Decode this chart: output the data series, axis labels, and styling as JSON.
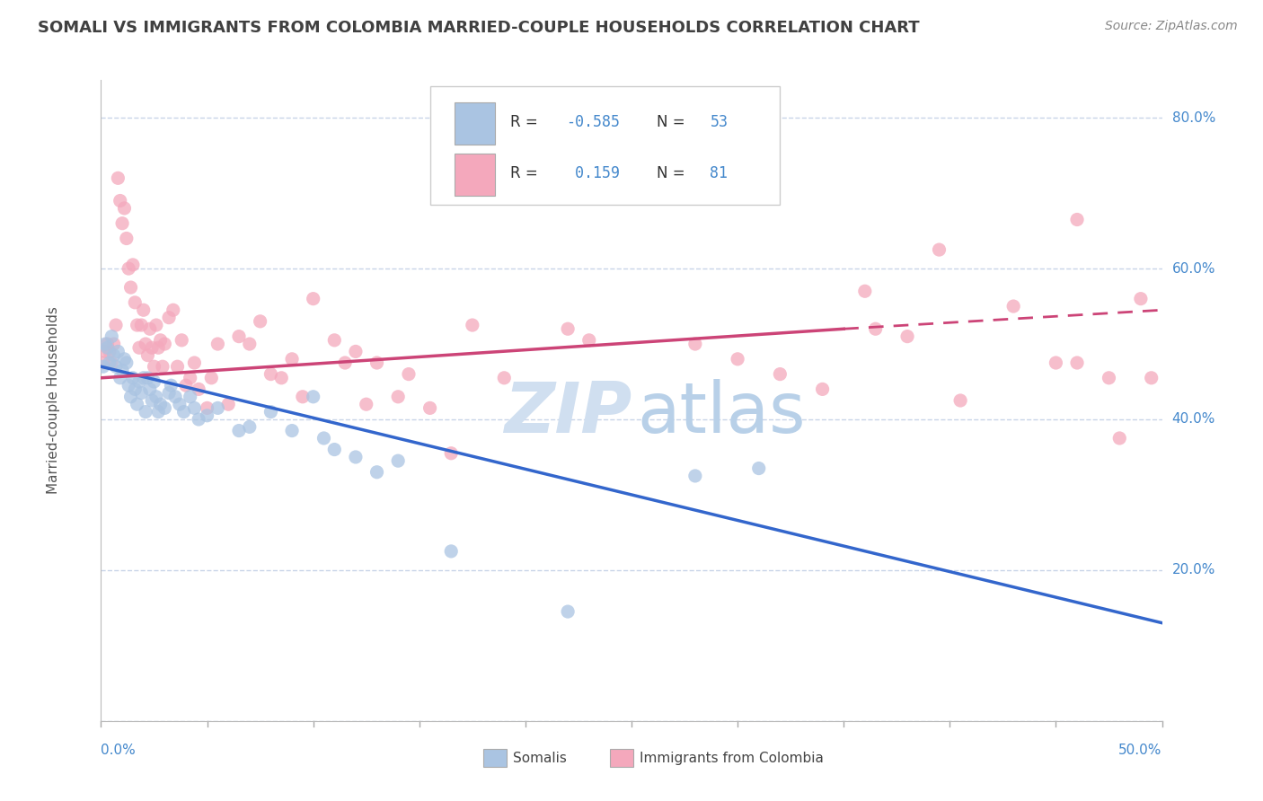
{
  "title": "SOMALI VS IMMIGRANTS FROM COLOMBIA MARRIED-COUPLE HOUSEHOLDS CORRELATION CHART",
  "source": "Source: ZipAtlas.com",
  "ylabel": "Married-couple Households",
  "x_min": 0.0,
  "x_max": 0.5,
  "y_min": 0.0,
  "y_max": 0.85,
  "somali_color": "#aac4e2",
  "colombia_color": "#f4a8bc",
  "somali_line_color": "#3366cc",
  "colombia_line_color": "#cc4477",
  "watermark_color": "#d0dff0",
  "grid_color": "#c8d4e8",
  "title_color": "#404040",
  "axis_label_color": "#4488cc",
  "somali_points": [
    [
      0.001,
      0.47
    ],
    [
      0.002,
      0.5
    ],
    [
      0.003,
      0.495
    ],
    [
      0.004,
      0.475
    ],
    [
      0.005,
      0.51
    ],
    [
      0.006,
      0.485
    ],
    [
      0.007,
      0.47
    ],
    [
      0.008,
      0.49
    ],
    [
      0.009,
      0.455
    ],
    [
      0.01,
      0.465
    ],
    [
      0.011,
      0.48
    ],
    [
      0.012,
      0.475
    ],
    [
      0.013,
      0.445
    ],
    [
      0.014,
      0.43
    ],
    [
      0.015,
      0.455
    ],
    [
      0.016,
      0.44
    ],
    [
      0.017,
      0.42
    ],
    [
      0.018,
      0.45
    ],
    [
      0.019,
      0.435
    ],
    [
      0.02,
      0.455
    ],
    [
      0.021,
      0.41
    ],
    [
      0.022,
      0.455
    ],
    [
      0.023,
      0.44
    ],
    [
      0.024,
      0.425
    ],
    [
      0.025,
      0.45
    ],
    [
      0.026,
      0.43
    ],
    [
      0.027,
      0.41
    ],
    [
      0.028,
      0.42
    ],
    [
      0.03,
      0.415
    ],
    [
      0.032,
      0.435
    ],
    [
      0.033,
      0.445
    ],
    [
      0.035,
      0.43
    ],
    [
      0.037,
      0.42
    ],
    [
      0.039,
      0.41
    ],
    [
      0.042,
      0.43
    ],
    [
      0.044,
      0.415
    ],
    [
      0.046,
      0.4
    ],
    [
      0.05,
      0.405
    ],
    [
      0.055,
      0.415
    ],
    [
      0.065,
      0.385
    ],
    [
      0.07,
      0.39
    ],
    [
      0.08,
      0.41
    ],
    [
      0.09,
      0.385
    ],
    [
      0.1,
      0.43
    ],
    [
      0.105,
      0.375
    ],
    [
      0.11,
      0.36
    ],
    [
      0.12,
      0.35
    ],
    [
      0.13,
      0.33
    ],
    [
      0.14,
      0.345
    ],
    [
      0.165,
      0.225
    ],
    [
      0.22,
      0.145
    ],
    [
      0.28,
      0.325
    ],
    [
      0.31,
      0.335
    ]
  ],
  "colombia_points": [
    [
      0.001,
      0.475
    ],
    [
      0.002,
      0.49
    ],
    [
      0.003,
      0.5
    ],
    [
      0.004,
      0.49
    ],
    [
      0.005,
      0.475
    ],
    [
      0.006,
      0.5
    ],
    [
      0.007,
      0.525
    ],
    [
      0.008,
      0.72
    ],
    [
      0.009,
      0.69
    ],
    [
      0.01,
      0.66
    ],
    [
      0.011,
      0.68
    ],
    [
      0.012,
      0.64
    ],
    [
      0.013,
      0.6
    ],
    [
      0.014,
      0.575
    ],
    [
      0.015,
      0.605
    ],
    [
      0.016,
      0.555
    ],
    [
      0.017,
      0.525
    ],
    [
      0.018,
      0.495
    ],
    [
      0.019,
      0.525
    ],
    [
      0.02,
      0.545
    ],
    [
      0.021,
      0.5
    ],
    [
      0.022,
      0.485
    ],
    [
      0.023,
      0.52
    ],
    [
      0.024,
      0.495
    ],
    [
      0.025,
      0.47
    ],
    [
      0.026,
      0.525
    ],
    [
      0.027,
      0.495
    ],
    [
      0.028,
      0.505
    ],
    [
      0.029,
      0.47
    ],
    [
      0.03,
      0.5
    ],
    [
      0.032,
      0.535
    ],
    [
      0.034,
      0.545
    ],
    [
      0.036,
      0.47
    ],
    [
      0.038,
      0.505
    ],
    [
      0.04,
      0.445
    ],
    [
      0.042,
      0.455
    ],
    [
      0.044,
      0.475
    ],
    [
      0.046,
      0.44
    ],
    [
      0.05,
      0.415
    ],
    [
      0.052,
      0.455
    ],
    [
      0.055,
      0.5
    ],
    [
      0.06,
      0.42
    ],
    [
      0.065,
      0.51
    ],
    [
      0.07,
      0.5
    ],
    [
      0.075,
      0.53
    ],
    [
      0.08,
      0.46
    ],
    [
      0.085,
      0.455
    ],
    [
      0.09,
      0.48
    ],
    [
      0.095,
      0.43
    ],
    [
      0.1,
      0.56
    ],
    [
      0.11,
      0.505
    ],
    [
      0.115,
      0.475
    ],
    [
      0.12,
      0.49
    ],
    [
      0.125,
      0.42
    ],
    [
      0.13,
      0.475
    ],
    [
      0.14,
      0.43
    ],
    [
      0.145,
      0.46
    ],
    [
      0.155,
      0.415
    ],
    [
      0.165,
      0.355
    ],
    [
      0.175,
      0.525
    ],
    [
      0.19,
      0.455
    ],
    [
      0.22,
      0.52
    ],
    [
      0.23,
      0.505
    ],
    [
      0.28,
      0.5
    ],
    [
      0.3,
      0.48
    ],
    [
      0.32,
      0.46
    ],
    [
      0.34,
      0.44
    ],
    [
      0.36,
      0.57
    ],
    [
      0.38,
      0.51
    ],
    [
      0.395,
      0.625
    ],
    [
      0.43,
      0.55
    ],
    [
      0.45,
      0.475
    ],
    [
      0.46,
      0.475
    ],
    [
      0.475,
      0.455
    ],
    [
      0.495,
      0.455
    ],
    [
      0.46,
      0.665
    ],
    [
      0.49,
      0.56
    ],
    [
      0.48,
      0.375
    ],
    [
      0.365,
      0.52
    ],
    [
      0.405,
      0.425
    ]
  ],
  "somali_trendline": [
    [
      0.0,
      0.47
    ],
    [
      0.5,
      0.13
    ]
  ],
  "colombia_trendline_solid": [
    [
      0.0,
      0.455
    ],
    [
      0.35,
      0.52
    ]
  ],
  "colombia_trendline_dashed": [
    [
      0.35,
      0.52
    ],
    [
      0.5,
      0.545
    ]
  ]
}
